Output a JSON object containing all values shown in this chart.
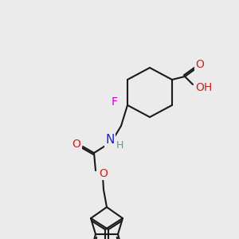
{
  "bg_color": "#ebebeb",
  "line_color": "#1a1a1a",
  "line_width": 1.5,
  "atom_colors": {
    "F": "#cc00cc",
    "N": "#2222cc",
    "O": "#cc2222",
    "H_label": "#33aaaa"
  },
  "font_size": 10,
  "font_size_small": 9
}
